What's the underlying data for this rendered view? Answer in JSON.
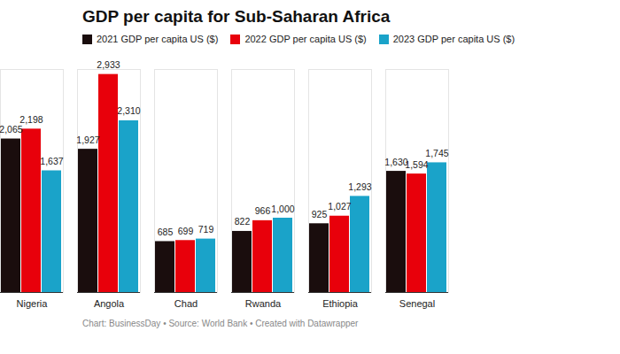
{
  "chart_data": {
    "type": "bar",
    "title": "GDP per capita for Sub-Saharan Africa",
    "categories": [
      "Nigeria",
      "Angola",
      "Chad",
      "Rwanda",
      "Ethiopia",
      "Senegal"
    ],
    "series": [
      {
        "name": "2021 GDP per capita US ($)",
        "color": "#1a0d0d",
        "values": [
          2065,
          1927,
          685,
          822,
          925,
          1630
        ],
        "value_labels": [
          "2,065",
          "1,927",
          "685",
          "822",
          "925",
          "1,630"
        ]
      },
      {
        "name": "2022 GDP per capita US ($)",
        "color": "#e8000b",
        "values": [
          2198,
          2933,
          699,
          966,
          1027,
          1594
        ],
        "value_labels": [
          "2,198",
          "2,933",
          "699",
          "966",
          "1,027",
          "1,594"
        ]
      },
      {
        "name": "2023 GDP per capita US ($)",
        "color": "#1aa3c9",
        "values": [
          1637,
          2310,
          719,
          1000,
          1293,
          1745
        ],
        "value_labels": [
          "1,637",
          "2,310",
          "719",
          "1,000",
          "1,293",
          "1,745"
        ]
      }
    ],
    "ylim": [
      0,
      3000
    ],
    "data_labels": true,
    "tick_labels": "x",
    "legend": "top-left",
    "caption": "Chart: BusinessDay • Source: World Bank • Created with Datawrapper"
  }
}
